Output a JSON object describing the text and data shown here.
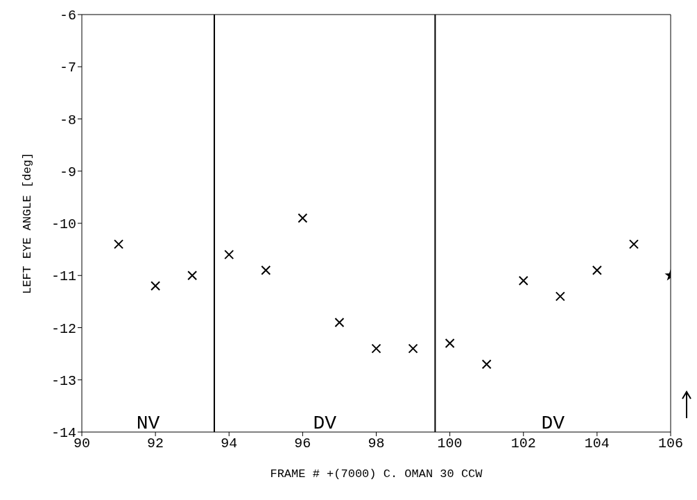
{
  "chart_data": {
    "type": "scatter",
    "xlabel": "FRAME # +(7000)  C. OMAN  30 CCW",
    "ylabel": "LEFT EYE ANGLE  [deg]",
    "xlim": [
      90,
      106
    ],
    "xticks": [
      90,
      92,
      94,
      96,
      98,
      100,
      102,
      104,
      106
    ],
    "ylim": [
      -14,
      -6
    ],
    "yticks": [
      -14,
      -13,
      -12,
      -11,
      -10,
      -9,
      -8,
      -7,
      -6
    ],
    "grid": false,
    "legend": false,
    "marker": "cross",
    "series": [
      {
        "color": "#000000",
        "x": [
          91,
          92,
          93,
          94,
          95,
          96,
          97,
          98,
          99,
          100,
          101,
          102,
          103,
          104,
          105
        ],
        "values": [
          -10.4,
          -11.2,
          -11.0,
          -10.6,
          -10.9,
          -9.9,
          -11.9,
          -12.4,
          -12.4,
          -12.3,
          -12.7,
          -11.1,
          -11.4,
          -10.9,
          -10.4
        ]
      },
      {
        "color": "#000000",
        "marker": "star",
        "x": [
          106
        ],
        "values": [
          -11.0
        ]
      }
    ],
    "ref_lines": [
      {
        "axis": "x",
        "value": 93.6,
        "color": "#000000"
      },
      {
        "axis": "x",
        "value": 99.6,
        "color": "#000000"
      }
    ],
    "annotations": [
      "NV",
      "DV",
      "DV"
    ]
  }
}
